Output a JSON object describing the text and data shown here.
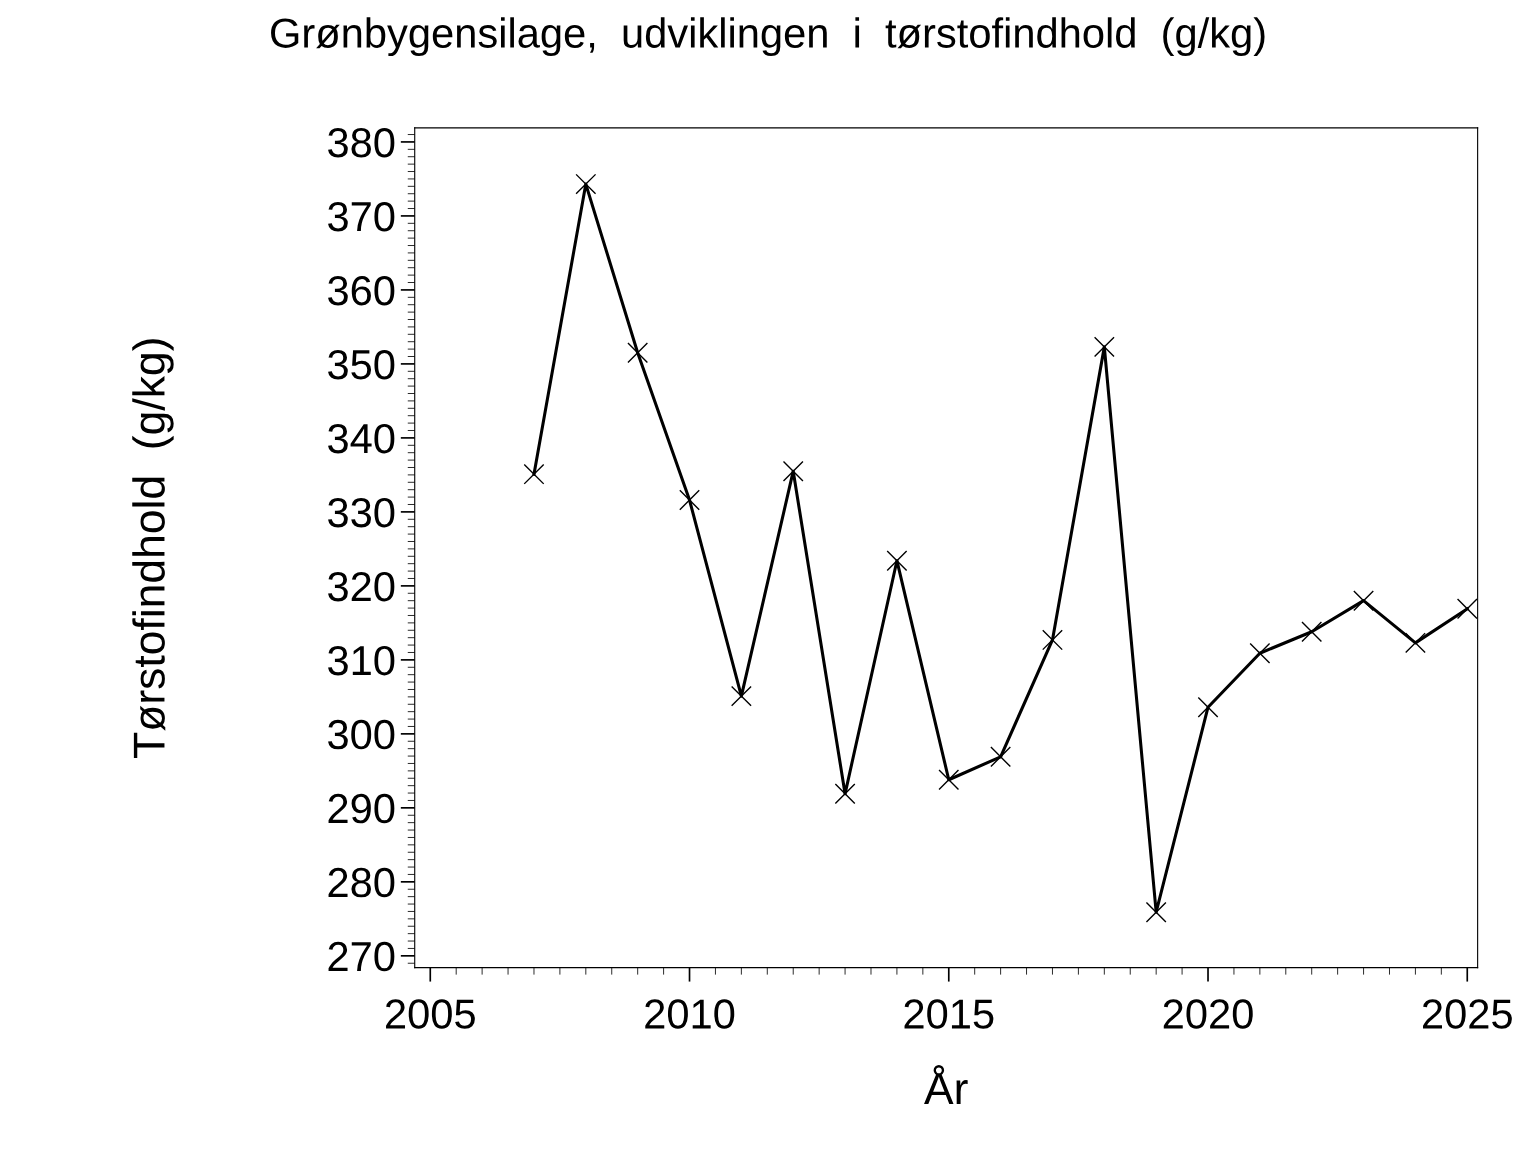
{
  "chart_data": {
    "type": "line",
    "title": "Grønbygensilage,  udviklingen  i  tørstofindhold  (g/kg)",
    "xlabel": "År",
    "ylabel": "Tørstofindhold  (g/kg)",
    "x": [
      2007,
      2008,
      2009,
      2010,
      2011,
      2012,
      2013,
      2014,
      2015,
      2016,
      2017,
      2018,
      2019,
      2020,
      2021,
      2022,
      2023,
      2024,
      2025
    ],
    "series": [
      {
        "color": "#000000",
        "values": [
          335.1,
          374.3,
          351.5,
          331.6,
          305.1,
          335.5,
          291.9,
          323.4,
          293.8,
          296.9,
          312.7,
          352.3,
          275.9,
          303.6,
          310.9,
          313.8,
          318.0,
          312.3,
          316.9
        ]
      }
    ],
    "xlim": [
      2004.7,
      2025.2
    ],
    "xticks": [
      2005,
      2010,
      2015,
      2020,
      2025
    ],
    "ylim": [
      268.4,
      381.9
    ],
    "yticks": [
      270,
      280,
      290,
      300,
      310,
      320,
      330,
      340,
      350,
      360,
      370,
      380
    ],
    "marker": "cross",
    "line_style": "solid",
    "grid": false,
    "legend": false
  }
}
